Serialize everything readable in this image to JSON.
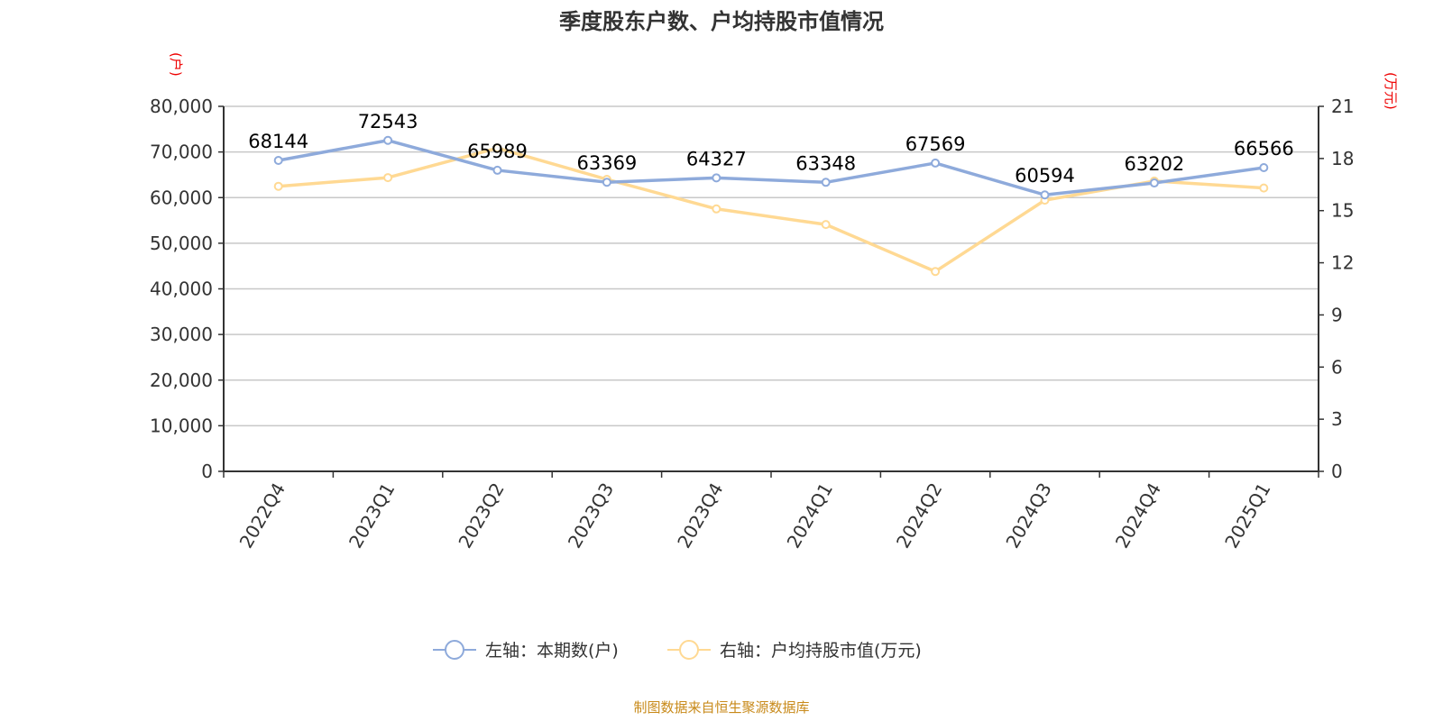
{
  "chart_data": {
    "type": "line",
    "title": "季度股东户数、户均持股市值情况",
    "categories": [
      "2022Q4",
      "2023Q1",
      "2023Q2",
      "2023Q3",
      "2023Q4",
      "2024Q1",
      "2024Q2",
      "2024Q3",
      "2024Q4",
      "2025Q1"
    ],
    "left_axis": {
      "unit_label": "(户)",
      "ylim": [
        0,
        80000
      ],
      "ticks": [
        "0",
        "10,000",
        "20,000",
        "30,000",
        "40,000",
        "50,000",
        "60,000",
        "70,000",
        "80,000"
      ]
    },
    "right_axis": {
      "unit_label": "(万元)",
      "ylim": [
        0,
        21
      ],
      "ticks": [
        "0",
        "3",
        "6",
        "9",
        "12",
        "15",
        "18",
        "21"
      ]
    },
    "series": [
      {
        "name": "左轴：本期数(户)",
        "axis": "left",
        "color": "#8eaadb",
        "values": [
          68144,
          72543,
          65989,
          63369,
          64327,
          63348,
          67569,
          60594,
          63202,
          66566
        ],
        "labels": [
          "68144",
          "72543",
          "65989",
          "63369",
          "64327",
          "63348",
          "67569",
          "60594",
          "63202",
          "66566"
        ]
      },
      {
        "name": "右轴：户均持股市值(万元)",
        "axis": "right",
        "color": "#ffd993",
        "values": [
          16.4,
          16.9,
          18.6,
          16.8,
          15.1,
          14.2,
          11.5,
          15.6,
          16.7,
          16.3
        ]
      }
    ],
    "grid": true,
    "legend_position": "bottom"
  },
  "source": "制图数据来自恒生聚源数据库"
}
